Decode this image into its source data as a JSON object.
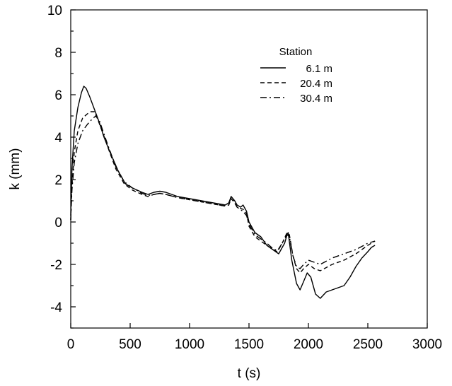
{
  "chart_data": {
    "type": "line",
    "xlabel": "t (s)",
    "ylabel": "k (mm)",
    "xlim": [
      0,
      3000
    ],
    "ylim": [
      -5,
      10
    ],
    "xticks": [
      0,
      500,
      1000,
      1500,
      2000,
      2500,
      3000
    ],
    "yticks": [
      -4,
      -2,
      0,
      2,
      4,
      6,
      8,
      10
    ],
    "xtick_labels": [
      "0",
      "500",
      "1000",
      "1500",
      "2000",
      "2500",
      "3000"
    ],
    "ytick_labels": [
      "-4",
      "-2",
      "0",
      "2",
      "4",
      "6",
      "8",
      "10"
    ],
    "grid": false,
    "legend": {
      "title": "Station",
      "placement": "top-right"
    },
    "series": [
      {
        "name": "6.1 m",
        "dash": "solid",
        "x": [
          0,
          10,
          30,
          60,
          90,
          110,
          130,
          160,
          200,
          240,
          280,
          330,
          400,
          460,
          520,
          600,
          650,
          700,
          750,
          800,
          900,
          1000,
          1100,
          1200,
          1300,
          1330,
          1350,
          1380,
          1400,
          1430,
          1450,
          1480,
          1500,
          1550,
          1600,
          1650,
          1700,
          1750,
          1780,
          1800,
          1820,
          1830,
          1860,
          1900,
          1930,
          1960,
          1990,
          2020,
          2060,
          2100,
          2150,
          2200,
          2250,
          2300,
          2350,
          2400,
          2450,
          2500,
          2530,
          2560
        ],
        "y": [
          0.3,
          2.5,
          4.3,
          5.4,
          6.1,
          6.4,
          6.3,
          5.9,
          5.3,
          4.7,
          4.0,
          3.3,
          2.4,
          1.8,
          1.6,
          1.4,
          1.3,
          1.4,
          1.45,
          1.4,
          1.2,
          1.1,
          1.0,
          0.9,
          0.8,
          0.9,
          1.2,
          1.0,
          0.8,
          0.7,
          0.8,
          0.5,
          0.0,
          -0.5,
          -0.7,
          -1.1,
          -1.3,
          -1.5,
          -1.2,
          -1.0,
          -0.6,
          -0.5,
          -1.8,
          -2.9,
          -3.2,
          -2.8,
          -2.4,
          -2.6,
          -3.4,
          -3.6,
          -3.3,
          -3.2,
          -3.1,
          -3.0,
          -2.6,
          -2.1,
          -1.7,
          -1.4,
          -1.2,
          -1.1
        ]
      },
      {
        "name": "20.4 m",
        "dash": "dashed",
        "x": [
          0,
          10,
          30,
          60,
          100,
          140,
          170,
          200,
          230,
          270,
          320,
          380,
          450,
          520,
          600,
          650,
          700,
          750,
          800,
          900,
          1000,
          1100,
          1200,
          1300,
          1330,
          1350,
          1380,
          1400,
          1450,
          1480,
          1500,
          1550,
          1600,
          1650,
          1700,
          1740,
          1780,
          1820,
          1840,
          1870,
          1900,
          1930,
          1960,
          2000,
          2050,
          2100,
          2200,
          2300,
          2400,
          2500,
          2560
        ],
        "y": [
          0.1,
          1.7,
          3.3,
          4.3,
          4.9,
          5.1,
          5.2,
          5.2,
          4.8,
          4.2,
          3.4,
          2.5,
          1.8,
          1.5,
          1.3,
          1.2,
          1.3,
          1.35,
          1.3,
          1.15,
          1.05,
          0.95,
          0.85,
          0.75,
          0.8,
          1.1,
          0.9,
          0.7,
          0.6,
          0.4,
          -0.2,
          -0.7,
          -0.9,
          -1.1,
          -1.3,
          -1.4,
          -1.0,
          -0.5,
          -0.6,
          -1.6,
          -2.2,
          -2.4,
          -2.2,
          -2.0,
          -2.2,
          -2.3,
          -2.0,
          -1.8,
          -1.5,
          -1.1,
          -0.9
        ]
      },
      {
        "name": "30.4 m",
        "dash": "dash-dot",
        "x": [
          0,
          10,
          30,
          60,
          100,
          140,
          180,
          210,
          240,
          270,
          320,
          380,
          450,
          520,
          600,
          650,
          700,
          750,
          800,
          900,
          1000,
          1100,
          1200,
          1300,
          1330,
          1350,
          1380,
          1400,
          1450,
          1480,
          1500,
          1550,
          1600,
          1650,
          1700,
          1740,
          1780,
          1820,
          1840,
          1870,
          1900,
          1930,
          1960,
          2000,
          2050,
          2100,
          2200,
          2300,
          2400,
          2500,
          2560
        ],
        "y": [
          0.1,
          1.5,
          2.8,
          3.7,
          4.3,
          4.6,
          4.85,
          5.0,
          4.8,
          4.3,
          3.5,
          2.6,
          1.9,
          1.6,
          1.35,
          1.25,
          1.3,
          1.35,
          1.3,
          1.15,
          1.05,
          0.95,
          0.85,
          0.75,
          0.8,
          1.2,
          0.9,
          0.7,
          0.5,
          0.3,
          -0.1,
          -0.6,
          -0.8,
          -1.0,
          -1.25,
          -1.35,
          -1.0,
          -0.6,
          -0.7,
          -1.6,
          -2.1,
          -2.2,
          -2.0,
          -1.8,
          -1.9,
          -2.0,
          -1.7,
          -1.5,
          -1.3,
          -1.0,
          -0.9
        ]
      }
    ]
  }
}
